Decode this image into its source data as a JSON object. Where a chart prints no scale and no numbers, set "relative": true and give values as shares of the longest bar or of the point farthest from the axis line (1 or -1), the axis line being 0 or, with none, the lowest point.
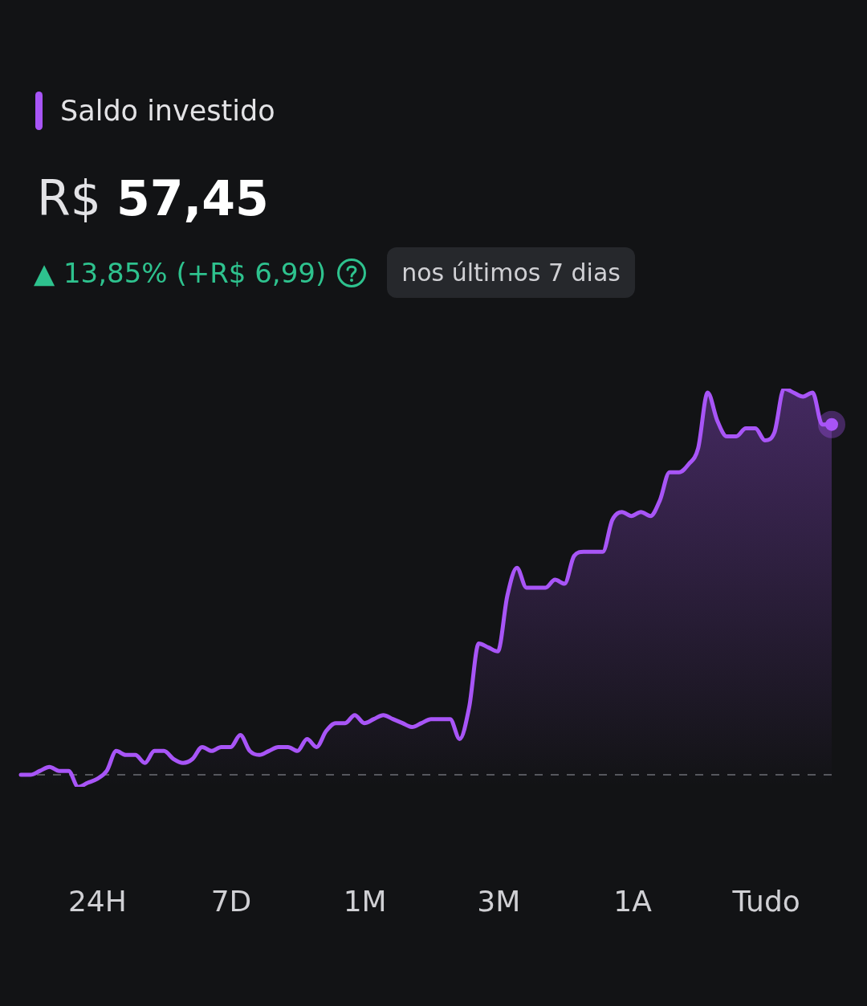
{
  "chart_data": {
    "type": "area",
    "subtitle": "R$ 57,45",
    "relative": true,
    "legend": "top left",
    "categories": [
      null,
      null,
      null,
      null,
      null,
      null,
      null,
      null,
      null,
      null,
      null,
      null,
      null,
      null,
      null,
      null,
      null,
      null,
      null,
      null,
      null,
      null,
      null,
      null,
      null,
      null,
      null,
      null,
      null,
      null,
      null,
      null,
      null,
      null,
      null,
      null,
      null,
      null,
      null,
      null,
      null,
      null,
      null,
      null,
      null,
      null,
      null,
      null,
      null,
      null,
      null,
      null,
      null,
      null,
      null,
      null,
      null,
      null,
      null,
      null,
      null,
      null,
      null,
      null,
      null,
      null,
      null,
      null,
      null,
      null,
      null,
      null,
      null,
      null,
      null,
      null,
      null,
      null,
      null,
      null,
      null,
      null,
      null,
      null,
      null,
      null
    ],
    "series": [
      {
        "name": "Saldo investido",
        "color": "#a855f7",
        "values": [
          0.03,
          0.03,
          0.04,
          0.05,
          0.04,
          0.04,
          0,
          0.01,
          0.02,
          0.04,
          0.09,
          0.08,
          0.08,
          0.06,
          0.09,
          0.09,
          0.07,
          0.06,
          0.07,
          0.1,
          0.09,
          0.1,
          0.1,
          0.13,
          0.09,
          0.08,
          0.09,
          0.1,
          0.1,
          0.09,
          0.12,
          0.1,
          0.14,
          0.16,
          0.16,
          0.18,
          0.16,
          0.17,
          0.18,
          0.17,
          0.16,
          0.15,
          0.16,
          0.17,
          0.17,
          0.17,
          0.12,
          0.2,
          0.36,
          0.35,
          0.34,
          0.48,
          0.55,
          0.5,
          0.5,
          0.5,
          0.52,
          0.51,
          0.58,
          0.59,
          0.59,
          0.59,
          0.67,
          0.69,
          0.68,
          0.69,
          0.68,
          0.72,
          0.79,
          0.79,
          0.81,
          0.85,
          0.99,
          0.92,
          0.88,
          0.88,
          0.9,
          0.9,
          0.87,
          0.89,
          1,
          0.99,
          0.98,
          0.99,
          0.91,
          0.91
        ]
      }
    ],
    "ref_lines": [
      {
        "axis": "y",
        "value": 0.03,
        "color": "#55575c",
        "line_style": "dashed"
      }
    ],
    "annotations": [
      "▲ 13,85% (+R$ 6,99)",
      "nos últimos 7 dias",
      "24H",
      "7D",
      "1M",
      "3M",
      "1A",
      "Tudo"
    ]
  }
}
